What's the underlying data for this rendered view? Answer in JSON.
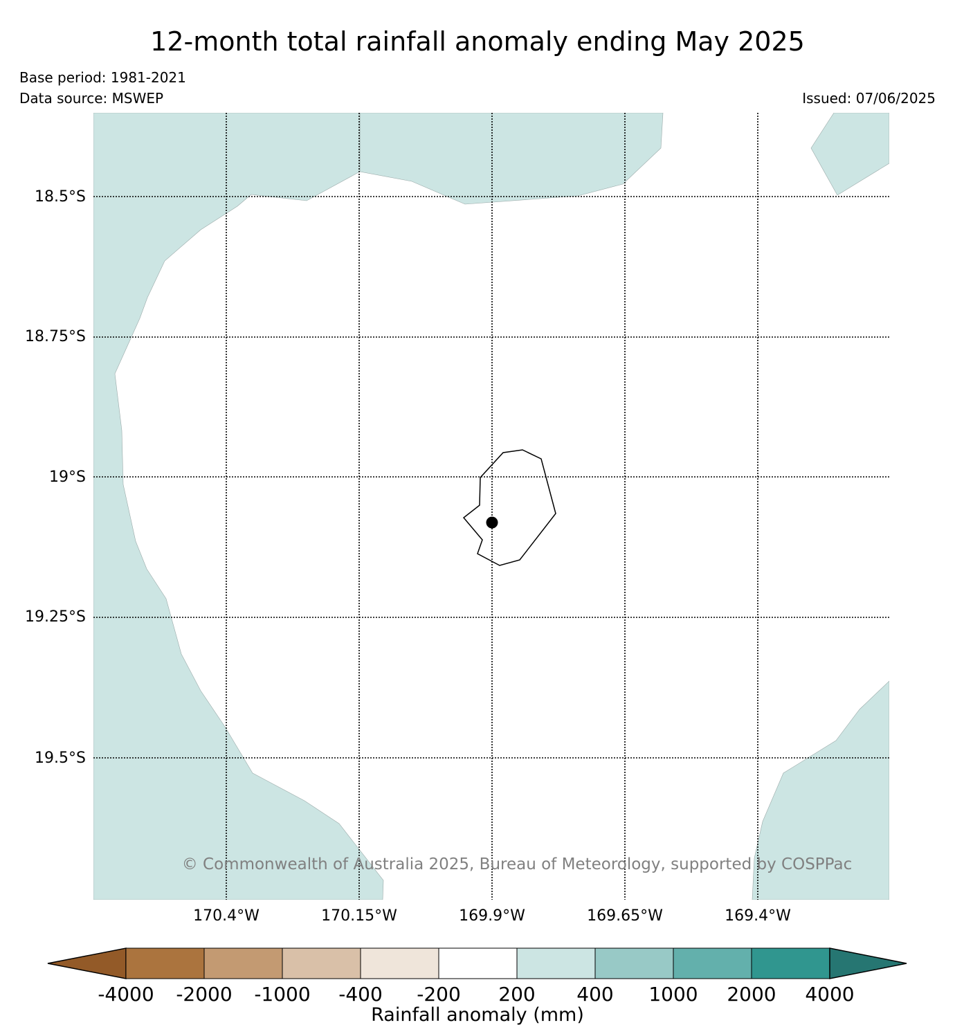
{
  "title": "12-month total rainfall anomaly ending May 2025",
  "base_period": "Base period: 1981-2021",
  "data_source": "Data source: MSWEP",
  "issued": "Issued: 07/06/2025",
  "copyright": "© Commonwealth of Australia 2025, Bureau of Meteorology, supported by COSPPac",
  "map": {
    "lat_labels": [
      "18.5°S",
      "18.75°S",
      "19°S",
      "19.25°S",
      "19.5°S"
    ],
    "lon_labels": [
      "170.4°W",
      "170.15°W",
      "169.9°W",
      "169.65°W",
      "169.4°W"
    ],
    "land_feature": "Niue island outline",
    "marker": "station-dot",
    "fill_color": "#cce5e3",
    "background_color": "#ffffff"
  },
  "colorbar": {
    "label": "Rainfall anomaly (mm)",
    "ticks": [
      "-4000",
      "-2000",
      "-1000",
      "-400",
      "-200",
      "200",
      "400",
      "1000",
      "2000",
      "4000"
    ],
    "colors": [
      "#935a28",
      "#ab743e",
      "#c39a72",
      "#d9c0a8",
      "#efe5da",
      "#ffffff",
      "#cce5e3",
      "#98c9c6",
      "#63b0ac",
      "#30968f",
      "#267672"
    ]
  }
}
